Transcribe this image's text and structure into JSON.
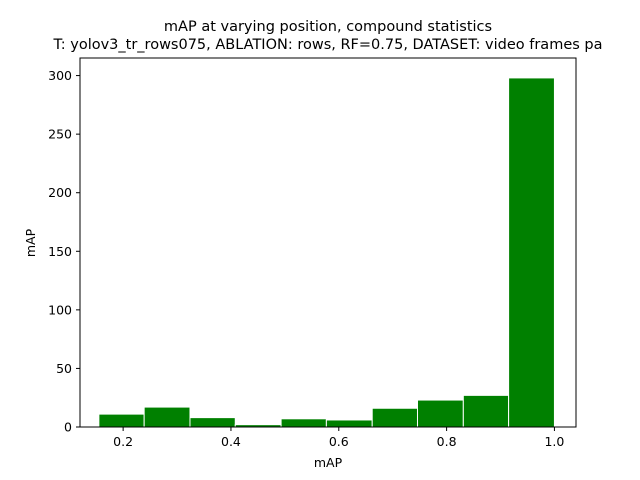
{
  "chart_data": {
    "type": "bar",
    "title": "mAP at varying position, compound statistics",
    "subtitle": "T: yolov3_tr_rows075, ABLATION: rows, RF=0.75, DATASET: video frames pa",
    "xlabel": "mAP",
    "ylabel": "mAP",
    "xlim": [
      0.12,
      1.04
    ],
    "ylim": [
      0,
      315
    ],
    "xticks": [
      0.2,
      0.4,
      0.6,
      0.8,
      1.0
    ],
    "xtick_labels": [
      "0.2",
      "0.4",
      "0.6",
      "0.8",
      "1.0"
    ],
    "yticks": [
      0,
      50,
      100,
      150,
      200,
      250,
      300
    ],
    "ytick_labels": [
      "0",
      "50",
      "100",
      "150",
      "200",
      "250",
      "300"
    ],
    "bins": [
      {
        "start": 0.155,
        "end": 0.239,
        "value": 11
      },
      {
        "start": 0.239,
        "end": 0.324,
        "value": 17
      },
      {
        "start": 0.324,
        "end": 0.408,
        "value": 8
      },
      {
        "start": 0.408,
        "end": 0.493,
        "value": 2
      },
      {
        "start": 0.493,
        "end": 0.577,
        "value": 7
      },
      {
        "start": 0.577,
        "end": 0.662,
        "value": 6
      },
      {
        "start": 0.662,
        "end": 0.746,
        "value": 16
      },
      {
        "start": 0.746,
        "end": 0.831,
        "value": 23
      },
      {
        "start": 0.831,
        "end": 0.915,
        "value": 27
      },
      {
        "start": 0.915,
        "end": 1.0,
        "value": 298
      }
    ],
    "bar_color": "#008000",
    "edge_color": "#ffffff",
    "grid": false,
    "legend": "none"
  }
}
